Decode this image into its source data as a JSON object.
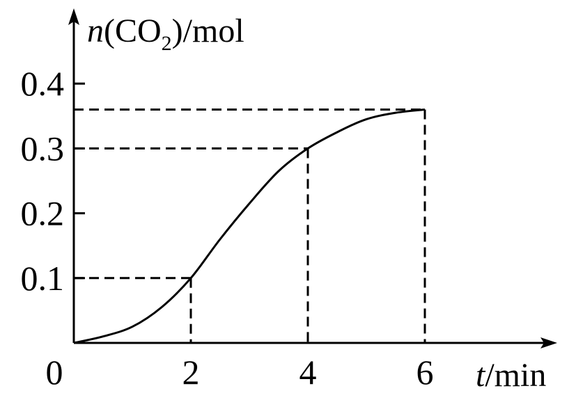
{
  "chart_data": {
    "type": "line",
    "x": [
      0,
      0.5,
      1,
      1.5,
      2,
      2.5,
      3,
      3.5,
      4,
      4.5,
      5,
      5.5,
      6
    ],
    "series": [
      {
        "values": [
          0,
          0.01,
          0.025,
          0.055,
          0.1,
          0.16,
          0.215,
          0.265,
          0.3,
          0.325,
          0.345,
          0.355,
          0.36
        ]
      }
    ],
    "x_ticks": [
      "0",
      "2",
      "4",
      "6"
    ],
    "y_ticks": [
      "0.1",
      "0.2",
      "0.3",
      "0.4"
    ],
    "xlim": [
      0,
      8
    ],
    "ylim": [
      0,
      0.45
    ],
    "guides": [
      {
        "x": 2,
        "y": 0.1
      },
      {
        "x": 4,
        "y": 0.3
      },
      {
        "x": 6,
        "y": 0.36
      }
    ],
    "xlabel": {
      "var": "t",
      "unit": "/min"
    },
    "ylabel": {
      "var": "n",
      "paren_open": "(",
      "species": "CO",
      "subscript": "2",
      "paren_close": ")",
      "unit": "/mol"
    },
    "grid": false,
    "colors": {
      "line": "#000000",
      "axis": "#000000"
    }
  }
}
